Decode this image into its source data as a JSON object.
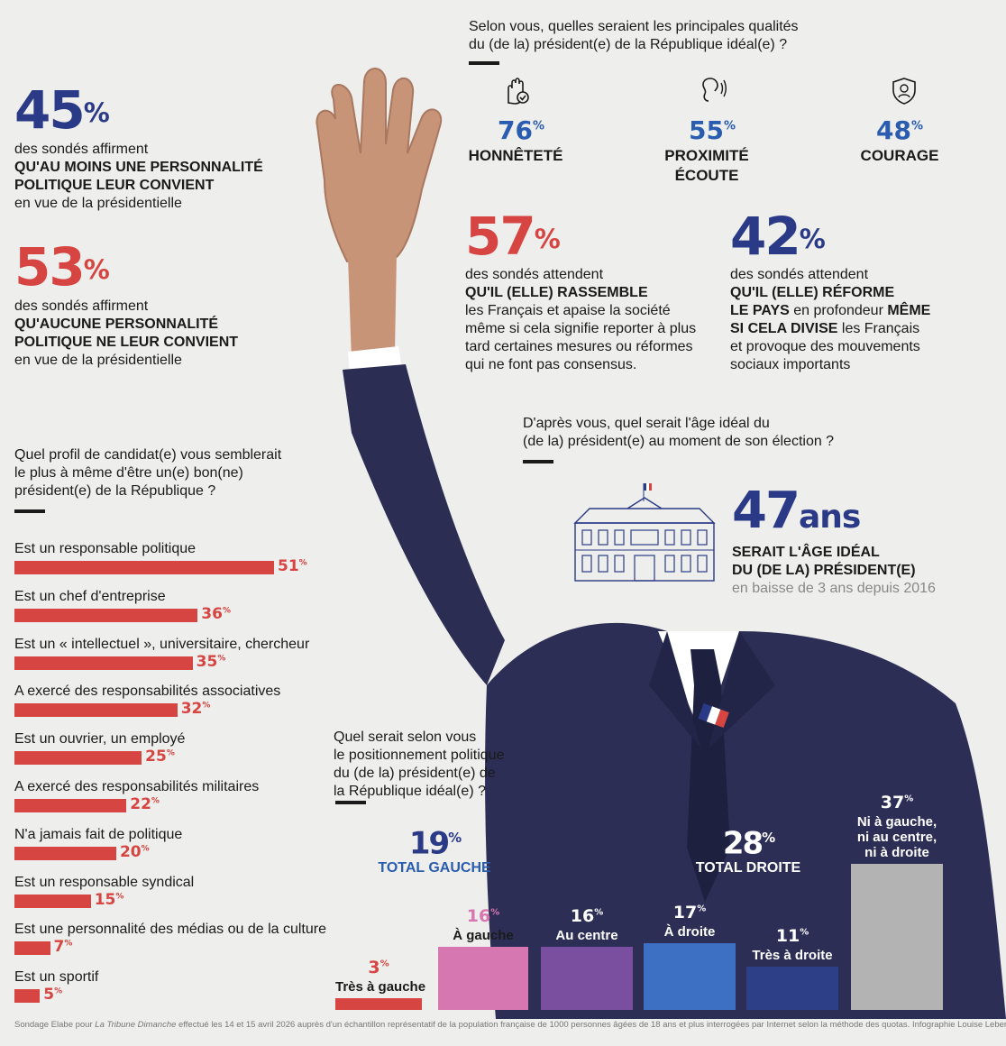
{
  "stats_left": [
    {
      "value": "45",
      "unit": "%",
      "line1": "des sondés affirment",
      "bold1": "QU'AU MOINS UNE  PERSONNALITÉ",
      "bold2": "POLITIQUE LEUR CONVIENT",
      "line_end": "en vue de la présidentielle",
      "color": "#2a3a86"
    },
    {
      "value": "53",
      "unit": "%",
      "line1": "des sondés affirment",
      "bold1": "QU'AUCUNE PERSONNALITÉ",
      "bold2": "POLITIQUE NE LEUR CONVIENT",
      "line_end": "en vue de la présidentielle",
      "color": "#d64541"
    }
  ],
  "qualities": {
    "question_line1": "Selon vous, quelles seraient les principales qualités",
    "question_line2": "du (de la) président(e) de la République idéal(e) ?",
    "items": [
      {
        "value": "76",
        "unit": "%",
        "label1": "HONNÊTETÉ",
        "label2": "",
        "icon": "hand-check-icon"
      },
      {
        "value": "55",
        "unit": "%",
        "label1": "PROXIMITÉ",
        "label2": "ÉCOUTE",
        "icon": "ear-icon"
      },
      {
        "value": "48",
        "unit": "%",
        "label1": "COURAGE",
        "label2": "",
        "icon": "shield-heart-icon"
      }
    ]
  },
  "expectations": [
    {
      "value": "57",
      "unit": "%",
      "l1": "des sondés attendent",
      "b1": "QU'IL (ELLE) RASSEMBLE",
      "l2": "les Français et apaise la société",
      "l3": "même si cela signifie reporter à plus",
      "l4": "tard certaines mesures ou réformes",
      "l5": "qui ne font pas consensus.",
      "color": "#d64541"
    },
    {
      "value": "42",
      "unit": "%",
      "l1": "des sondés attendent",
      "b1": "QU'IL (ELLE) RÉFORME",
      "b2a": "LE PAYS",
      "l2a": " en profondeur ",
      "b2b": "MÊME",
      "b3": "SI CELA DIVISE",
      "l3": " les Français",
      "l4": "et provoque des mouvements",
      "l5": "sociaux importants",
      "color": "#2a3a86"
    }
  ],
  "age": {
    "question_line1": "D'après vous, quel serait l'âge idéal du",
    "question_line2": "(de la) président(e) au moment de son élection ?",
    "value": "47",
    "unit": "ans",
    "bold1": "SERAIT L'ÂGE IDÉAL",
    "bold2": "DU (DE LA) PRÉSIDENT(E)",
    "note": "en baisse de 3 ans depuis 2016"
  },
  "profile_question": [
    "Quel profil de candidat(e) vous semblerait",
    "le plus à même d'être un(e) bon(ne)",
    "président(e) de la République ?"
  ],
  "positioning": {
    "question": [
      "Quel serait selon vous",
      "le positionnement politique",
      "du (de la) président(e) de",
      "la République idéal(e) ?"
    ],
    "total_left": {
      "value": "19",
      "unit": "%",
      "label": "TOTAL GAUCHE"
    },
    "total_right": {
      "value": "28",
      "unit": "%",
      "label": "TOTAL DROITE"
    }
  },
  "chart_data": [
    {
      "type": "bar",
      "orientation": "horizontal",
      "categories": [
        "Est un responsable politique",
        "Est un chef d'entreprise",
        "Est un « intellectuel », universitaire, chercheur",
        "A exercé des responsabilités associatives",
        "Est un ouvrier, un employé",
        "A exercé des responsabilités militaires",
        "N'a jamais fait de politique",
        "Est un responsable syndical",
        "Est une personnalité des médias ou de la culture",
        "Est un sportif"
      ],
      "values": [
        51,
        36,
        35,
        32,
        25,
        22,
        20,
        15,
        7,
        5
      ],
      "unit": "%",
      "color": "#d64541"
    },
    {
      "type": "bar",
      "orientation": "vertical",
      "categories": [
        "Très à gauche",
        "À gauche",
        "Au centre",
        "À droite",
        "Très à droite",
        "Ni à gauche, ni au centre, ni à droite"
      ],
      "label_lines": [
        [
          "Très à gauche"
        ],
        [
          "À gauche"
        ],
        [
          "Au centre"
        ],
        [
          "À droite"
        ],
        [
          "Très à droite"
        ],
        [
          "Ni à gauche,",
          "ni au centre,",
          "ni à droite"
        ]
      ],
      "values": [
        3,
        16,
        16,
        17,
        11,
        37
      ],
      "unit": "%",
      "colors": [
        "#d64541",
        "#d677b2",
        "#7b4fa0",
        "#3d6fc2",
        "#2d3f86",
        "#b3b3b3"
      ],
      "value_colors": [
        "#d64541",
        "#d677b2",
        "#ffffff",
        "#ffffff",
        "#ffffff",
        "#ffffff"
      ]
    }
  ],
  "footer": {
    "pre": "Sondage Elabe pour ",
    "italic": "La Tribune Dimanche",
    "post": " effectué les 14 et 15 avril 2026 auprès d'un échantillon représentatif de la population française de 1000 personnes âgées de 18 ans et plus interrogées par Internet selon la méthode des quotas. Infographie Louise Lebert."
  }
}
